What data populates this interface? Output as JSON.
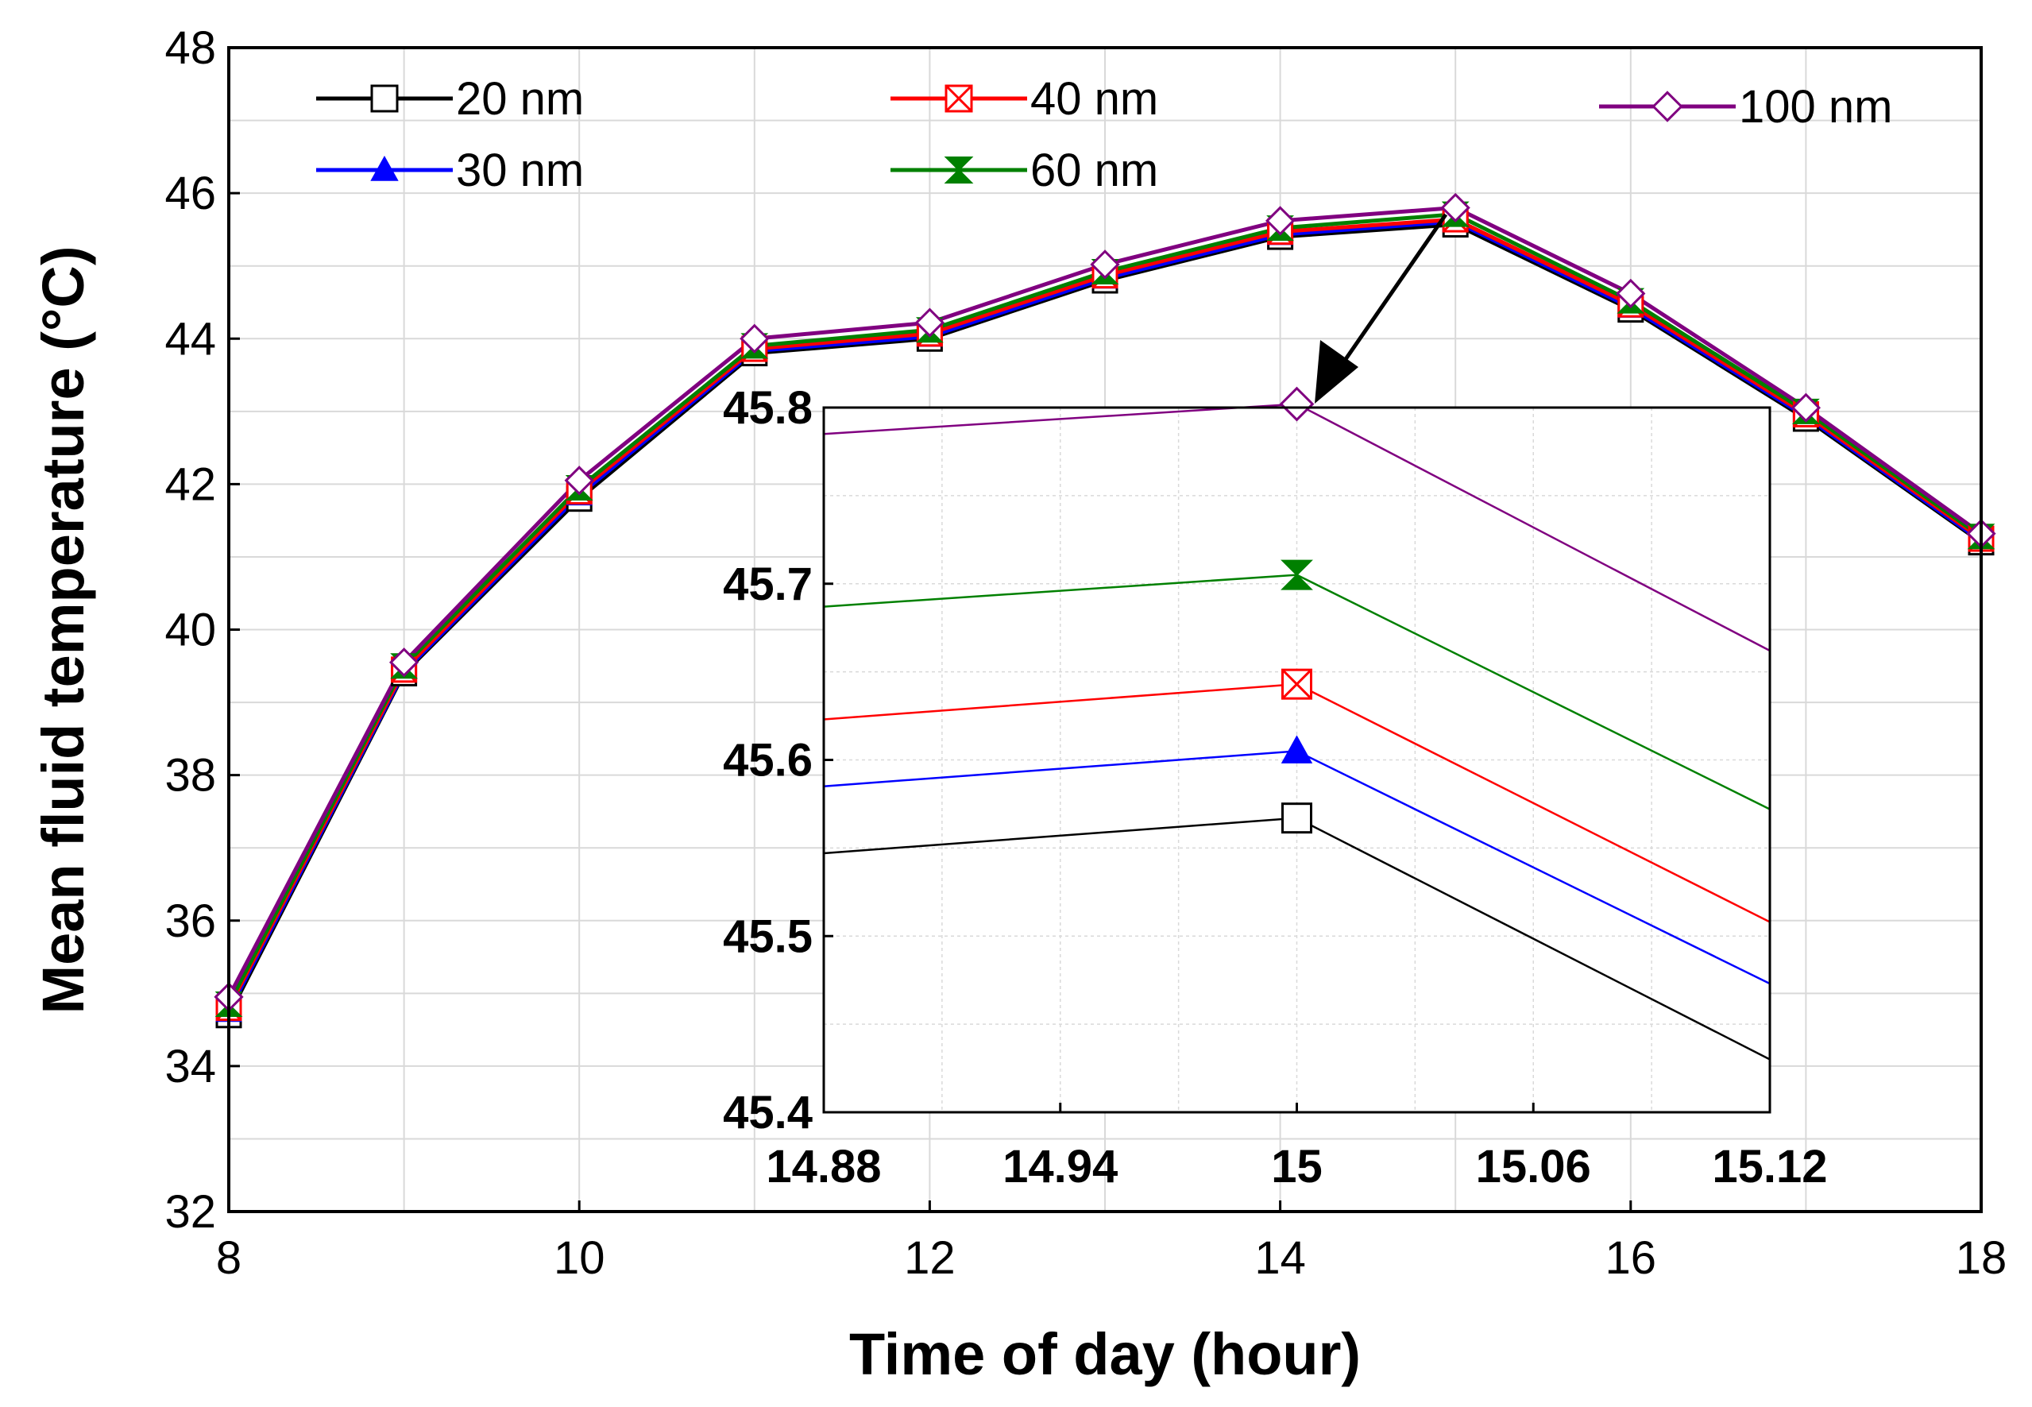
{
  "chart_data": [
    {
      "type": "line",
      "title": "",
      "xlabel": "Time of day (hour)",
      "ylabel": "Mean fluid temperature (°C)",
      "xlim": [
        8,
        18
      ],
      "ylim": [
        32,
        48
      ],
      "xticks": [
        "8",
        "10",
        "12",
        "14",
        "16",
        "18"
      ],
      "yticks": [
        "32",
        "34",
        "36",
        "38",
        "40",
        "42",
        "44",
        "46",
        "48"
      ],
      "grid": true,
      "legend_position": "top",
      "x": [
        8,
        9,
        10,
        11,
        12,
        13,
        14,
        15,
        16,
        17,
        18
      ],
      "series": [
        {
          "name": "20 nm",
          "color": "#000000",
          "marker": "square-open",
          "values": [
            34.7,
            39.4,
            41.8,
            43.8,
            44.0,
            44.8,
            45.4,
            45.57,
            44.4,
            42.9,
            41.2
          ]
        },
        {
          "name": "30 nm",
          "color": "#0000ff",
          "marker": "triangle-filled",
          "values": [
            34.75,
            39.42,
            41.85,
            43.83,
            44.03,
            44.83,
            45.43,
            45.61,
            44.43,
            42.93,
            41.22
          ]
        },
        {
          "name": "40 nm",
          "color": "#ff0000",
          "marker": "bowtie-open",
          "values": [
            34.8,
            39.45,
            41.9,
            43.86,
            44.07,
            44.87,
            45.47,
            45.64,
            44.47,
            42.96,
            41.25
          ]
        },
        {
          "name": "60 nm",
          "color": "#008000",
          "marker": "hourglass-filled",
          "values": [
            34.85,
            39.5,
            41.95,
            43.9,
            44.12,
            44.92,
            45.52,
            45.71,
            44.52,
            43.0,
            41.28
          ]
        },
        {
          "name": "100 nm",
          "color": "#800080",
          "marker": "diamond-open",
          "values": [
            34.95,
            39.55,
            42.05,
            44.0,
            44.22,
            45.02,
            45.62,
            45.8,
            44.62,
            43.05,
            41.32
          ]
        }
      ]
    },
    {
      "type": "line",
      "title": "",
      "role": "inset (zoom near x = 15)",
      "xlim": [
        14.88,
        15.12
      ],
      "ylim": [
        45.4,
        45.8
      ],
      "xticks": [
        "14.88",
        "14.94",
        "15",
        "15.06",
        "15.12"
      ],
      "yticks": [
        "45.4",
        "45.5",
        "45.6",
        "45.7",
        "45.8"
      ],
      "grid": true,
      "x": [
        14.88,
        15.0,
        15.12
      ],
      "series": [
        {
          "name": "20 nm",
          "values": [
            45.547,
            45.567,
            45.43
          ]
        },
        {
          "name": "30 nm",
          "values": [
            45.585,
            45.605,
            45.473
          ]
        },
        {
          "name": "40 nm",
          "values": [
            45.623,
            45.643,
            45.508
          ]
        },
        {
          "name": "60 nm",
          "values": [
            45.687,
            45.705,
            45.572
          ]
        },
        {
          "name": "100 nm",
          "values": [
            45.785,
            45.802,
            45.662
          ]
        }
      ]
    }
  ]
}
